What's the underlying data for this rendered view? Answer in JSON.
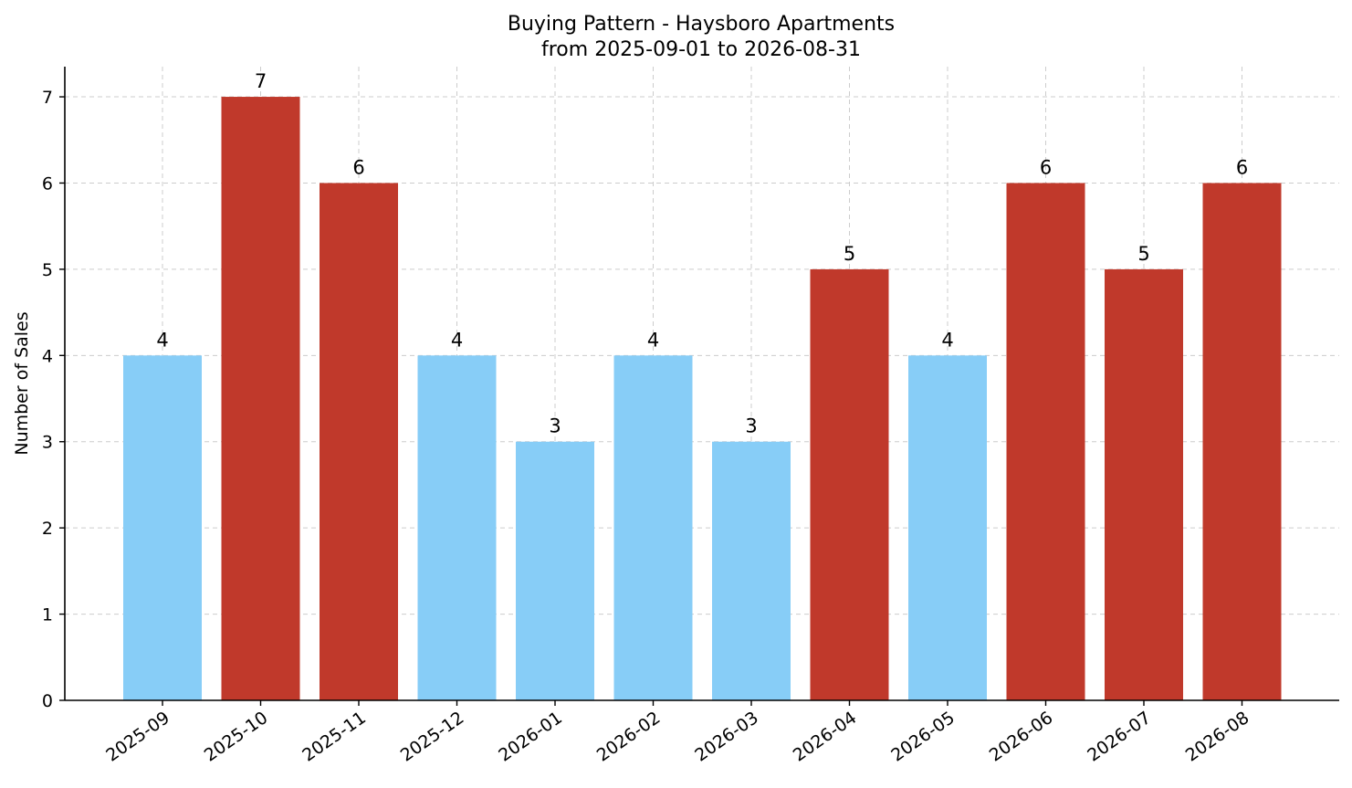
{
  "chart_data": {
    "type": "bar",
    "title": "Buying Pattern - Haysboro Apartments",
    "subtitle": "from 2025-09-01 to 2026-08-31",
    "xlabel": "",
    "ylabel": "Number of Sales",
    "ylim": [
      0,
      7.35
    ],
    "yticks": [
      0,
      1,
      2,
      3,
      4,
      5,
      6,
      7
    ],
    "grid": true,
    "categories": [
      "2025-09",
      "2025-10",
      "2025-11",
      "2025-12",
      "2026-01",
      "2026-02",
      "2026-03",
      "2026-04",
      "2026-05",
      "2026-06",
      "2026-07",
      "2026-08"
    ],
    "values": [
      4,
      7,
      6,
      4,
      3,
      4,
      3,
      5,
      4,
      6,
      5,
      6
    ],
    "colors": {
      "low": "#87cdf7",
      "high": "#c0392b"
    },
    "bar_colors": [
      "low",
      "high",
      "high",
      "low",
      "low",
      "low",
      "low",
      "high",
      "low",
      "high",
      "high",
      "high"
    ]
  }
}
